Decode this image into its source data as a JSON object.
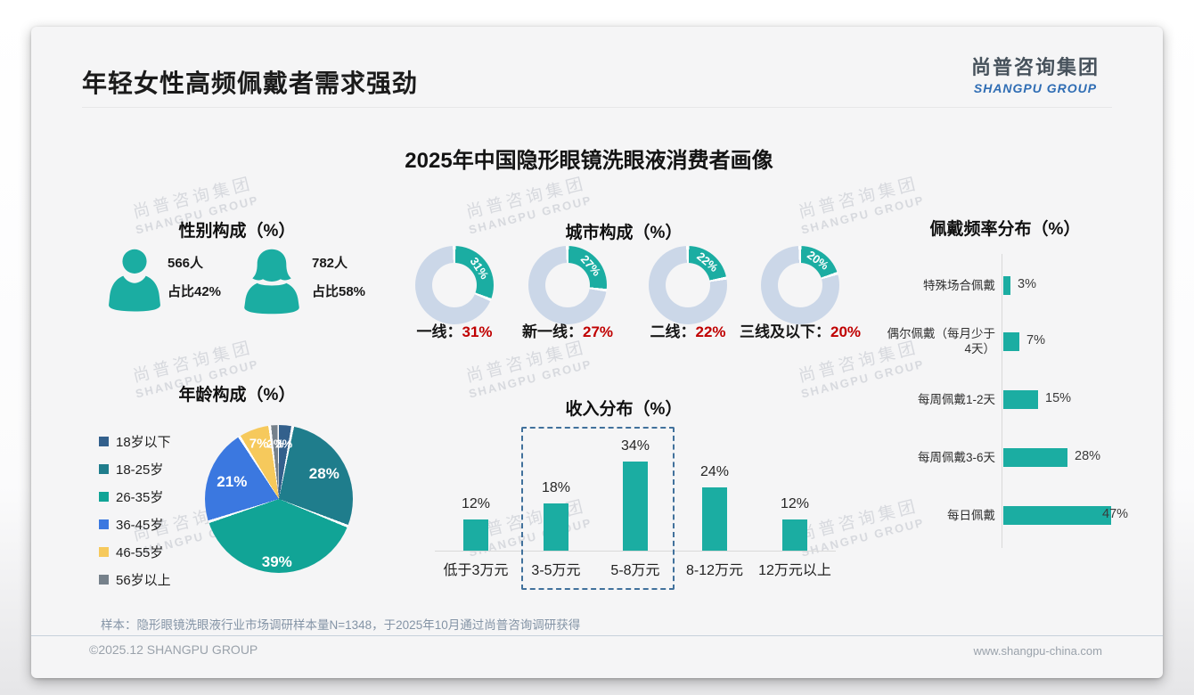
{
  "page": {
    "slide_title": "年轻女性高频佩戴者需求强劲",
    "logo_cn": "尚普咨询集团",
    "logo_en": "SHANGPU GROUP",
    "main_title": "2025年中国隐形眼镜洗眼液消费者画像",
    "footnote": "样本：隐形眼镜洗眼液行业市场调研样本量N=1348，于2025年10月通过尚普咨询调研获得",
    "footer_left": "©2025.12 SHANGPU GROUP",
    "footer_right": "www.shangpu-china.com",
    "watermark_cn": "尚普咨询集团",
    "watermark_en": "SHANGPU GROUP"
  },
  "colors": {
    "teal": "#1bada2",
    "donut_rest": "#cbd7e8",
    "value_red": "#c00000",
    "dashed_box": "#41719c",
    "pie": [
      "#33608c",
      "#1f7d8c",
      "#11a496",
      "#3b78e0",
      "#f6c95c",
      "#76818b"
    ]
  },
  "chart_data": [
    {
      "id": "gender",
      "type": "icon-stat",
      "title": "性别构成（%）",
      "items": [
        {
          "icon": "male-icon",
          "count": "566人",
          "share": "占比42%"
        },
        {
          "icon": "female-icon",
          "count": "782人",
          "share": "占比58%"
        }
      ]
    },
    {
      "id": "city",
      "type": "donut-set",
      "title": "城市构成（%）",
      "start_angle_deg": 0,
      "categories": [
        "一线",
        "新一线",
        "二线",
        "三线及以下"
      ],
      "values": [
        31,
        27,
        22,
        20
      ]
    },
    {
      "id": "age",
      "type": "pie",
      "title": "年龄构成（%）",
      "legend_position": "left",
      "categories": [
        "18岁以下",
        "18-25岁",
        "26-35岁",
        "36-45岁",
        "46-55岁",
        "56岁以上"
      ],
      "values": [
        3,
        28,
        39,
        21,
        7,
        2
      ]
    },
    {
      "id": "income",
      "type": "bar",
      "title": "收入分布（%）",
      "categories": [
        "低于3万元",
        "3-5万元",
        "5-8万元",
        "8-12万元",
        "12万元以上"
      ],
      "values": [
        12,
        18,
        34,
        24,
        12
      ],
      "highlight_categories": [
        "3-5万元",
        "5-8万元"
      ]
    },
    {
      "id": "frequency",
      "type": "hbar",
      "title": "佩戴频率分布（%）",
      "categories": [
        "特殊场合佩戴",
        "偶尔佩戴（每月少于4天）",
        "每周佩戴1-2天",
        "每周佩戴3-6天",
        "每日佩戴"
      ],
      "values": [
        3,
        7,
        15,
        28,
        47
      ]
    }
  ]
}
